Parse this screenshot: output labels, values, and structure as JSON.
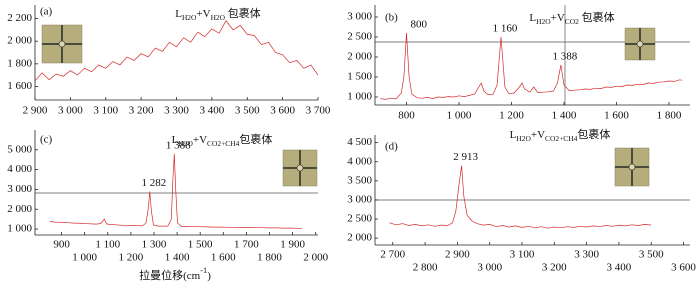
{
  "chart_data": [
    {
      "type": "line",
      "panel": "(a)",
      "annotation": [
        {
          "text": "L"
        },
        {
          "text": "H2O",
          "sub": true
        },
        {
          "text": "+V"
        },
        {
          "text": "H2O",
          "sub": true
        },
        {
          "text": " 包裹体"
        }
      ],
      "x": [
        2900,
        2920,
        2940,
        2960,
        2980,
        3000,
        3020,
        3040,
        3060,
        3080,
        3100,
        3120,
        3140,
        3160,
        3180,
        3200,
        3220,
        3240,
        3260,
        3280,
        3300,
        3320,
        3340,
        3360,
        3380,
        3400,
        3420,
        3440,
        3460,
        3480,
        3500,
        3520,
        3540,
        3560,
        3580,
        3600,
        3620,
        3640,
        3660,
        3680,
        3700
      ],
      "values": [
        1650,
        1720,
        1660,
        1710,
        1690,
        1740,
        1700,
        1760,
        1730,
        1790,
        1760,
        1820,
        1790,
        1860,
        1830,
        1890,
        1860,
        1940,
        1910,
        1990,
        1950,
        2030,
        1990,
        2080,
        2040,
        2110,
        2070,
        2180,
        2100,
        2140,
        2060,
        2050,
        1970,
        1990,
        1900,
        1880,
        1810,
        1830,
        1760,
        1790,
        1700
      ],
      "color": "#d42a2a",
      "xlim": [
        2900,
        3700
      ],
      "xticks": [
        {
          "value": 2900,
          "label": "2 900"
        },
        {
          "value": 3000,
          "label": "3 000"
        },
        {
          "value": 3100,
          "label": "3 100"
        },
        {
          "value": 3200,
          "label": "3 200"
        },
        {
          "value": 3300,
          "label": "3 300"
        },
        {
          "value": 3400,
          "label": "3 400"
        },
        {
          "value": 3500,
          "label": "3 500"
        },
        {
          "value": 3600,
          "label": "3 600"
        },
        {
          "value": 3700,
          "label": "3 700"
        }
      ],
      "ylim": [
        1480,
        2320
      ],
      "yticks": [
        {
          "value": 1600,
          "label": "1 600"
        },
        {
          "value": 1800,
          "label": "1 800"
        },
        {
          "value": 2000,
          "label": "2 000"
        },
        {
          "value": 2200,
          "label": "2 200"
        }
      ],
      "peak_labels": []
    },
    {
      "type": "line",
      "panel": "(b)",
      "annotation": [
        {
          "text": "L"
        },
        {
          "text": "H2O",
          "sub": true
        },
        {
          "text": "+V"
        },
        {
          "text": "CO2",
          "sub": true
        },
        {
          "text": " 包裹体"
        }
      ],
      "x": [
        700,
        720,
        740,
        760,
        780,
        790,
        800,
        810,
        820,
        840,
        860,
        880,
        900,
        920,
        940,
        960,
        980,
        1000,
        1020,
        1040,
        1060,
        1075,
        1085,
        1095,
        1110,
        1130,
        1145,
        1160,
        1175,
        1190,
        1210,
        1230,
        1240,
        1250,
        1270,
        1285,
        1300,
        1320,
        1340,
        1360,
        1375,
        1388,
        1400,
        1420,
        1440,
        1460,
        1480,
        1500,
        1520,
        1540,
        1560,
        1580,
        1600,
        1620,
        1640,
        1660,
        1680,
        1700,
        1720,
        1740,
        1760,
        1780,
        1800,
        1820,
        1840,
        1850
      ],
      "values": [
        960,
        940,
        970,
        950,
        1100,
        1500,
        2600,
        1500,
        1080,
        980,
        970,
        990,
        960,
        1000,
        990,
        1010,
        1000,
        1030,
        1010,
        1040,
        1080,
        1250,
        1350,
        1150,
        1060,
        1070,
        1300,
        2500,
        1250,
        1080,
        1100,
        1250,
        1350,
        1200,
        1120,
        1250,
        1110,
        1120,
        1130,
        1150,
        1350,
        1800,
        1300,
        1160,
        1170,
        1180,
        1200,
        1190,
        1220,
        1210,
        1250,
        1240,
        1270,
        1260,
        1300,
        1290,
        1320,
        1310,
        1350,
        1340,
        1370,
        1380,
        1400,
        1390,
        1430,
        1420
      ],
      "color": "#d42a2a",
      "xlim": [
        680,
        1880
      ],
      "xticks": [
        800,
        {
          "value": 1000,
          "label": "1 000"
        },
        {
          "value": 1200,
          "label": "1 200"
        },
        {
          "value": 1400,
          "label": "1 400"
        },
        {
          "value": 1600,
          "label": "1 600"
        },
        {
          "value": 1800,
          "label": "1 800"
        }
      ],
      "ylim": [
        800,
        3300
      ],
      "yticks": [
        {
          "value": 1000,
          "label": "1 000"
        },
        {
          "value": 1500,
          "label": "1 500"
        },
        {
          "value": 2000,
          "label": "2 000"
        },
        {
          "value": 2500,
          "label": "2 500"
        },
        {
          "value": 3000,
          "label": "3 000"
        }
      ],
      "peak_labels": [
        800,
        {
          "value": 1160,
          "label": "1 160"
        },
        {
          "value": 1388,
          "label": "1 388"
        }
      ]
    },
    {
      "type": "line",
      "panel": "(c)",
      "annotation": [
        {
          "text": "L"
        },
        {
          "text": "H2O",
          "sub": true
        },
        {
          "text": "+V"
        },
        {
          "text": "CO2+CH4",
          "sub": true
        },
        {
          "text": "包裹体"
        }
      ],
      "x": [
        850,
        870,
        890,
        910,
        930,
        950,
        970,
        990,
        1010,
        1030,
        1050,
        1070,
        1085,
        1095,
        1110,
        1130,
        1150,
        1170,
        1190,
        1210,
        1230,
        1250,
        1265,
        1275,
        1282,
        1289,
        1298,
        1320,
        1340,
        1360,
        1375,
        1382,
        1388,
        1394,
        1402,
        1420,
        1440,
        1470,
        1500,
        1530,
        1560,
        1590,
        1620,
        1650,
        1680,
        1710,
        1740,
        1770,
        1800,
        1830,
        1860,
        1890,
        1920,
        1940
      ],
      "values": [
        1380,
        1350,
        1340,
        1330,
        1320,
        1300,
        1300,
        1280,
        1270,
        1260,
        1250,
        1280,
        1500,
        1260,
        1230,
        1220,
        1200,
        1190,
        1190,
        1180,
        1170,
        1160,
        1300,
        2000,
        2900,
        1900,
        1200,
        1150,
        1150,
        1150,
        1500,
        3500,
        4800,
        3000,
        1300,
        1130,
        1130,
        1120,
        1120,
        1110,
        1100,
        1100,
        1090,
        1090,
        1080,
        1080,
        1070,
        1070,
        1060,
        1060,
        1050,
        1050,
        1040,
        1040
      ],
      "color": "#d42a2a",
      "xlim": [
        785,
        2010
      ],
      "xticks": [
        900,
        {
          "value": 1000,
          "label": "1 000"
        },
        {
          "value": 1100,
          "label": "1 100"
        },
        {
          "value": 1200,
          "label": "1 200"
        },
        {
          "value": 1300,
          "label": "1 300"
        },
        {
          "value": 1400,
          "label": "1 400"
        },
        {
          "value": 1500,
          "label": "1 500"
        },
        {
          "value": 1600,
          "label": "1 600"
        },
        {
          "value": 1700,
          "label": "1 700"
        },
        {
          "value": 1800,
          "label": "1 800"
        },
        {
          "value": 1900,
          "label": "1 900"
        },
        {
          "value": 2000,
          "label": "2 000"
        }
      ],
      "ylim": [
        700,
        6000
      ],
      "yticks": [
        {
          "value": 1000,
          "label": "1 000"
        },
        {
          "value": 2000,
          "label": "2 000"
        },
        {
          "value": 3000,
          "label": "3 000"
        },
        {
          "value": 4000,
          "label": "4 000"
        },
        {
          "value": 5000,
          "label": "5 000"
        }
      ],
      "peak_labels": [
        {
          "value": 1282,
          "label": "1 282"
        },
        {
          "value": 1388,
          "label": "1 388"
        }
      ]
    },
    {
      "type": "line",
      "panel": "(d)",
      "annotation": [
        {
          "text": "L"
        },
        {
          "text": "H2O",
          "sub": true
        },
        {
          "text": "+V"
        },
        {
          "text": "CO2+CH4",
          "sub": true
        },
        {
          "text": "包裹体"
        }
      ],
      "x": [
        2690,
        2710,
        2730,
        2750,
        2770,
        2790,
        2810,
        2830,
        2850,
        2870,
        2885,
        2895,
        2905,
        2913,
        2920,
        2930,
        2945,
        2960,
        2980,
        3000,
        3020,
        3040,
        3060,
        3080,
        3100,
        3120,
        3140,
        3160,
        3180,
        3200,
        3220,
        3240,
        3260,
        3280,
        3300,
        3320,
        3340,
        3360,
        3380,
        3400,
        3420,
        3440,
        3460,
        3480,
        3500
      ],
      "values": [
        2400,
        2350,
        2380,
        2330,
        2360,
        2320,
        2350,
        2310,
        2340,
        2330,
        2400,
        2700,
        3400,
        3900,
        3100,
        2600,
        2450,
        2380,
        2340,
        2360,
        2300,
        2330,
        2290,
        2320,
        2280,
        2310,
        2270,
        2300,
        2260,
        2290,
        2270,
        2300,
        2280,
        2310,
        2290,
        2320,
        2300,
        2330,
        2310,
        2340,
        2320,
        2350,
        2330,
        2360,
        2340
      ],
      "color": "#d42a2a",
      "xlim": [
        2645,
        3620
      ],
      "xticks": [
        {
          "value": 2700,
          "label": "2 700"
        },
        {
          "value": 2800,
          "label": "2 800"
        },
        {
          "value": 2900,
          "label": "2 900"
        },
        {
          "value": 3000,
          "label": "3 000"
        },
        {
          "value": 3100,
          "label": "3 100"
        },
        {
          "value": 3200,
          "label": "3 200"
        },
        {
          "value": 3300,
          "label": "3 300"
        },
        {
          "value": 3400,
          "label": "3 400"
        },
        {
          "value": 3500,
          "label": "3 500"
        },
        {
          "value": 3600,
          "label": "3 600"
        }
      ],
      "ylim": [
        1820,
        4700
      ],
      "yticks": [
        {
          "value": 2000,
          "label": "2 000"
        },
        {
          "value": 2500,
          "label": "2 500"
        },
        {
          "value": 3000,
          "label": "3 000"
        },
        {
          "value": 3500,
          "label": "3 500"
        },
        {
          "value": 4000,
          "label": "4 000"
        },
        {
          "value": 4500,
          "label": "4 500"
        }
      ],
      "peak_labels": [
        {
          "value": 2913,
          "label": "2 913"
        }
      ]
    }
  ],
  "xlabel": [
    {
      "text": "拉曼位移(cm"
    },
    {
      "text": "-1",
      "sup": true
    },
    {
      "text": ")"
    }
  ]
}
